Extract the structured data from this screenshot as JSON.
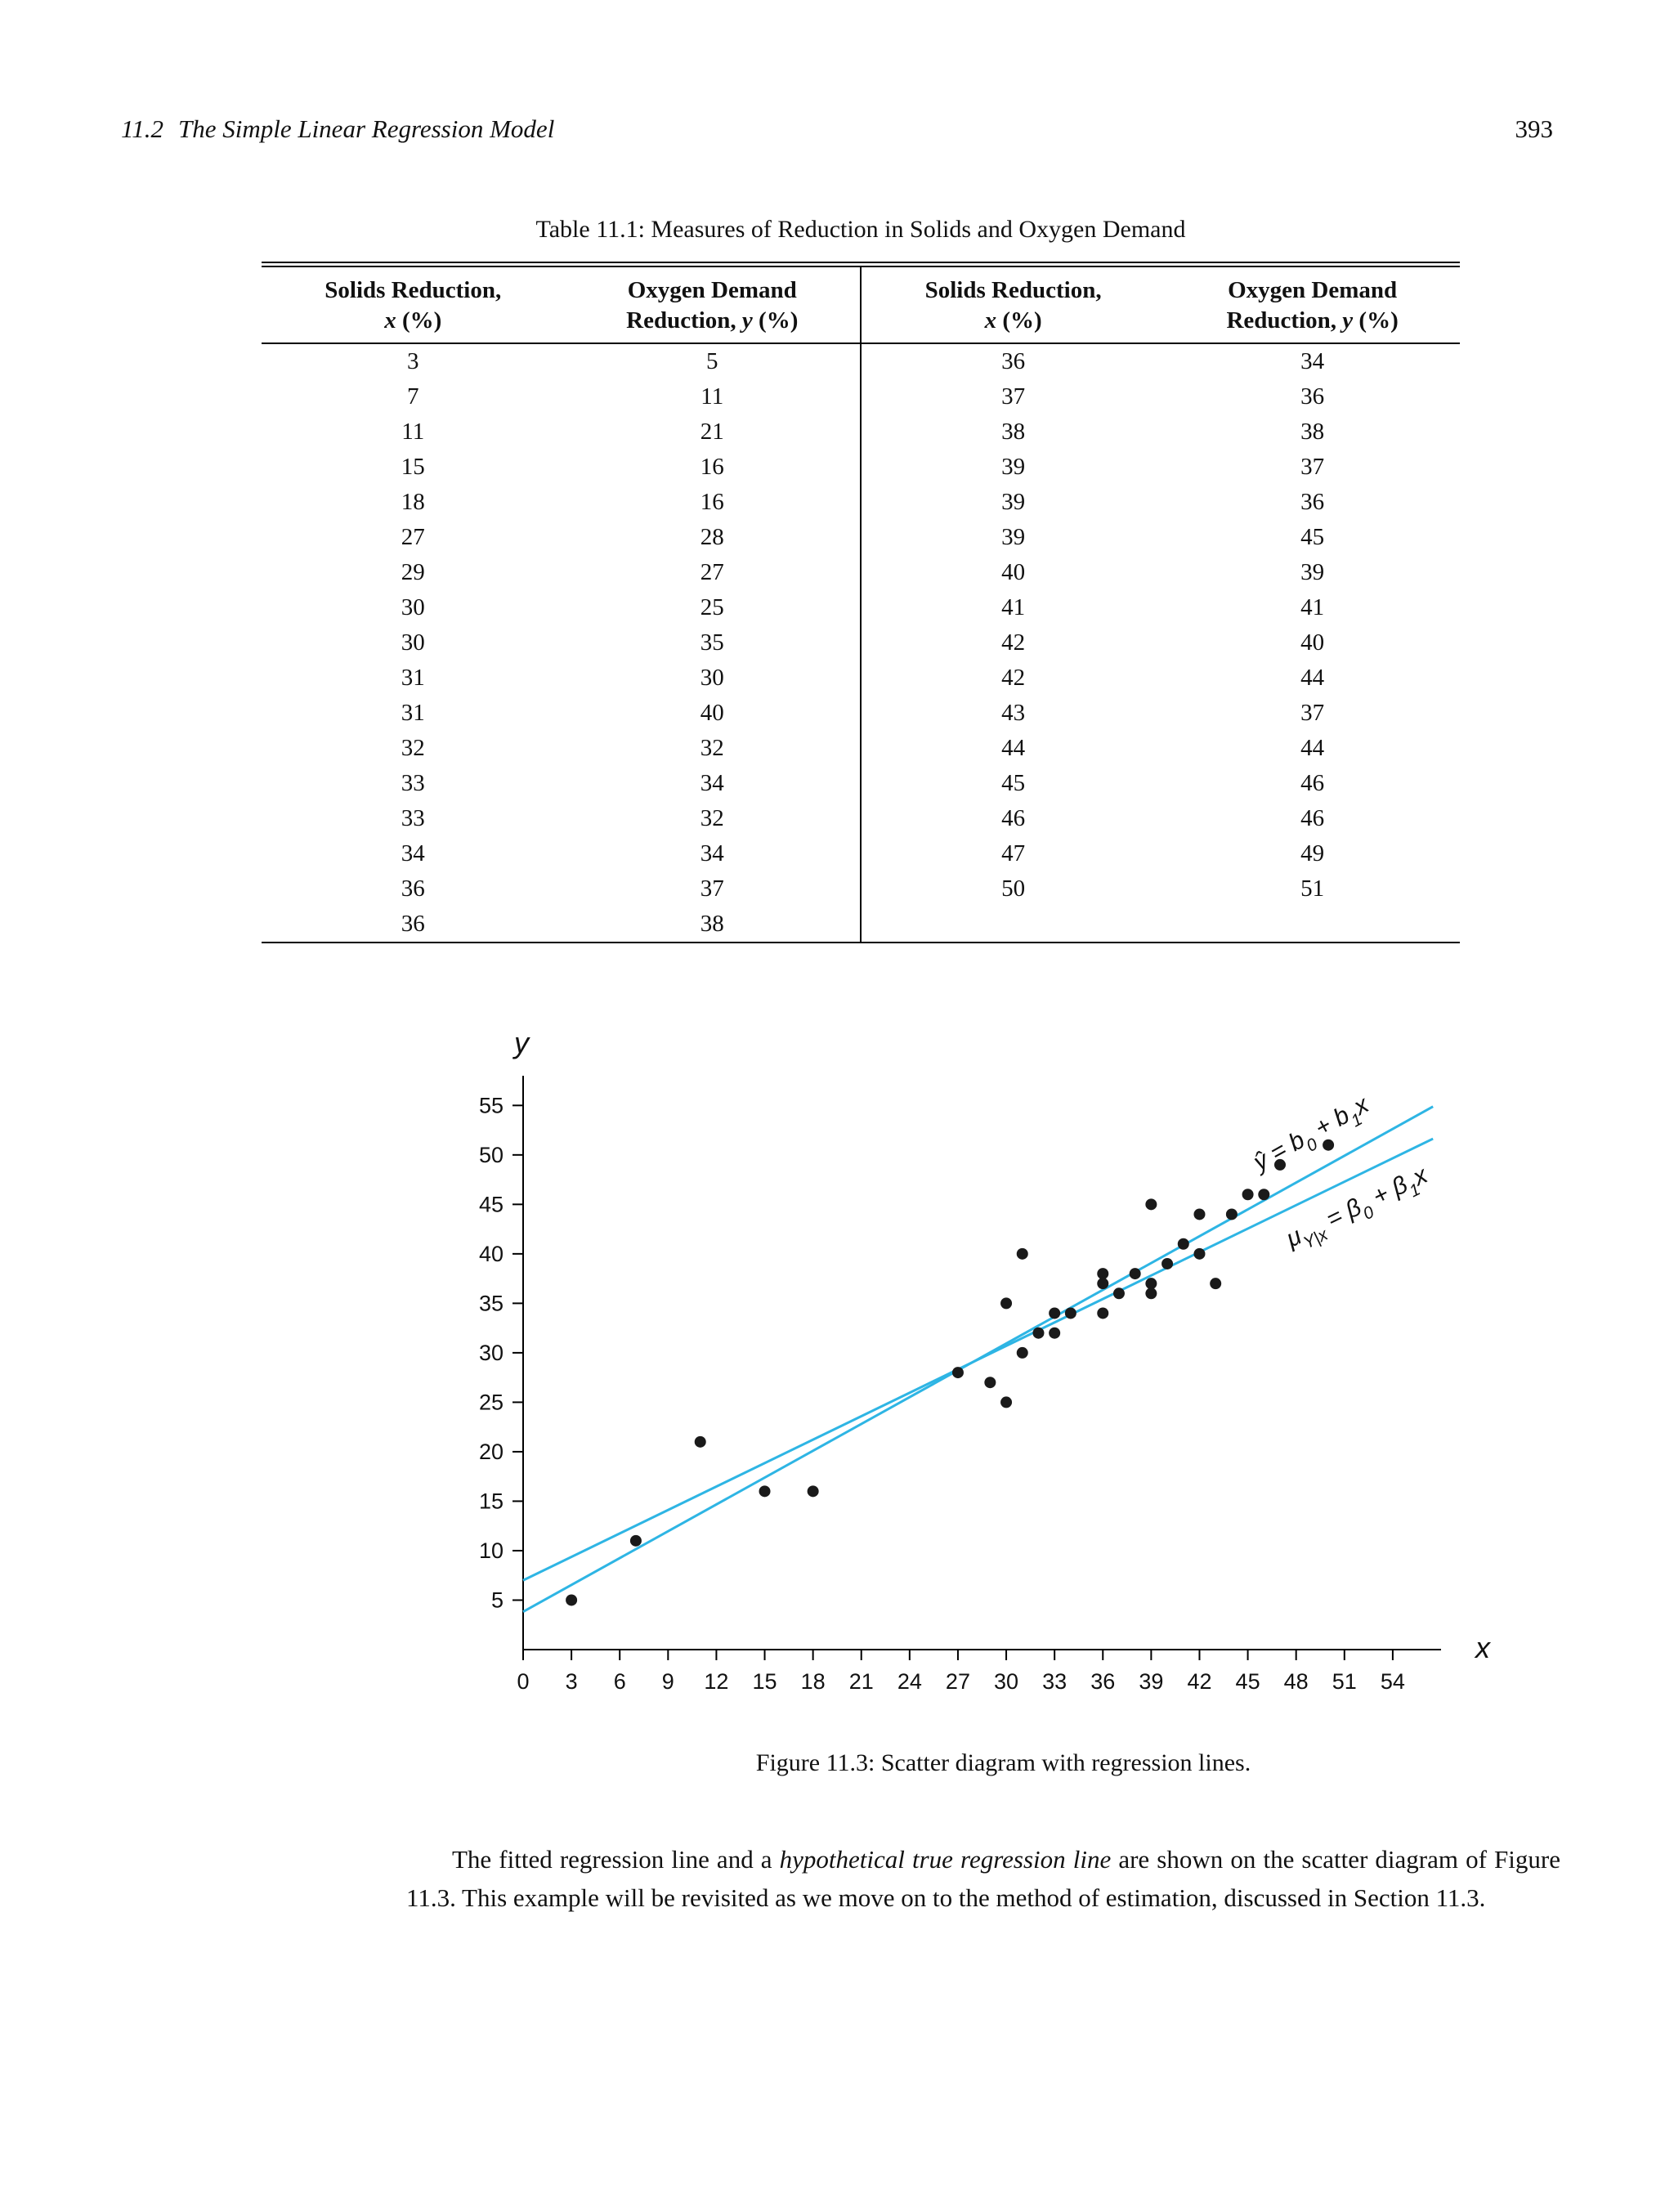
{
  "header": {
    "section_number": "11.2",
    "section_title": "The Simple Linear Regression Model",
    "page_number": "393"
  },
  "table": {
    "title": "Table 11.1: Measures of Reduction in Solids and Oxygen Demand",
    "headers": [
      {
        "line1": "Solids Reduction,",
        "pre": "",
        "var": "x",
        "unit": " (%)"
      },
      {
        "line1": "Oxygen Demand",
        "pre": "Reduction, ",
        "var": "y",
        "unit": " (%)"
      },
      {
        "line1": "Solids Reduction,",
        "pre": "",
        "var": "x",
        "unit": " (%)"
      },
      {
        "line1": "Oxygen Demand",
        "pre": "Reduction, ",
        "var": "y",
        "unit": " (%)"
      }
    ],
    "left_rows": [
      [
        3,
        5
      ],
      [
        7,
        11
      ],
      [
        11,
        21
      ],
      [
        15,
        16
      ],
      [
        18,
        16
      ],
      [
        27,
        28
      ],
      [
        29,
        27
      ],
      [
        30,
        25
      ],
      [
        30,
        35
      ],
      [
        31,
        30
      ],
      [
        31,
        40
      ],
      [
        32,
        32
      ],
      [
        33,
        34
      ],
      [
        33,
        32
      ],
      [
        34,
        34
      ],
      [
        36,
        37
      ],
      [
        36,
        38
      ]
    ],
    "right_rows": [
      [
        36,
        34
      ],
      [
        37,
        36
      ],
      [
        38,
        38
      ],
      [
        39,
        37
      ],
      [
        39,
        36
      ],
      [
        39,
        45
      ],
      [
        40,
        39
      ],
      [
        41,
        41
      ],
      [
        42,
        40
      ],
      [
        42,
        44
      ],
      [
        43,
        37
      ],
      [
        44,
        44
      ],
      [
        45,
        46
      ],
      [
        46,
        46
      ],
      [
        47,
        49
      ],
      [
        50,
        51
      ]
    ]
  },
  "figure": {
    "caption": "Figure 11.3: Scatter diagram with regression lines."
  },
  "paragraph": {
    "segments": [
      {
        "text": "The fitted regression line and a ",
        "italic": false
      },
      {
        "text": "hypothetical true regression line",
        "italic": true
      },
      {
        "text": " are shown on the scatter diagram of Figure 11.3. This example will be revisited as we move on to the method of estimation, discussed in Section 11.3.",
        "italic": false
      }
    ]
  },
  "chart_data": {
    "type": "scatter",
    "title": "",
    "xlabel": "x",
    "ylabel": "y",
    "xlim": [
      0,
      57
    ],
    "ylim": [
      0,
      58
    ],
    "x_ticks": [
      0,
      3,
      6,
      9,
      12,
      15,
      18,
      21,
      24,
      27,
      30,
      33,
      36,
      39,
      42,
      45,
      48,
      51,
      54
    ],
    "y_ticks": [
      5,
      10,
      15,
      20,
      25,
      30,
      35,
      40,
      45,
      50,
      55
    ],
    "points": [
      [
        3,
        5
      ],
      [
        7,
        11
      ],
      [
        11,
        21
      ],
      [
        15,
        16
      ],
      [
        18,
        16
      ],
      [
        27,
        28
      ],
      [
        29,
        27
      ],
      [
        30,
        25
      ],
      [
        30,
        35
      ],
      [
        31,
        30
      ],
      [
        31,
        40
      ],
      [
        32,
        32
      ],
      [
        33,
        34
      ],
      [
        33,
        32
      ],
      [
        34,
        34
      ],
      [
        36,
        37
      ],
      [
        36,
        38
      ],
      [
        36,
        34
      ],
      [
        37,
        36
      ],
      [
        38,
        38
      ],
      [
        39,
        37
      ],
      [
        39,
        36
      ],
      [
        39,
        45
      ],
      [
        40,
        39
      ],
      [
        41,
        41
      ],
      [
        42,
        40
      ],
      [
        42,
        44
      ],
      [
        43,
        37
      ],
      [
        44,
        44
      ],
      [
        45,
        46
      ],
      [
        46,
        46
      ],
      [
        47,
        49
      ],
      [
        50,
        51
      ]
    ],
    "lines": [
      {
        "name": "fitted-regression-line",
        "intercept": 3.83,
        "slope": 0.9036,
        "x_start": 0,
        "x_end": 56.5,
        "label_at_x": 50,
        "label_offset": -34,
        "label_parts": [
          {
            "t": "ŷ = b"
          },
          {
            "t": "0",
            "sub": true
          },
          {
            "t": " + b"
          },
          {
            "t": "1",
            "sub": true
          },
          {
            "t": "x"
          }
        ]
      },
      {
        "name": "true-regression-line",
        "intercept": 7.0,
        "slope": 0.79,
        "x_start": 0,
        "x_end": 56.5,
        "label_at_x": 51,
        "label_offset": 44,
        "label_parts": [
          {
            "t": "μ"
          },
          {
            "t": "Y|x",
            "sub": true
          },
          {
            "t": " = β"
          },
          {
            "t": "0",
            "sub": true
          },
          {
            "t": " + β"
          },
          {
            "t": "1",
            "sub": true
          },
          {
            "t": "x"
          }
        ]
      }
    ],
    "line_color": "#2eb5e4",
    "point_color": "#1a1a1a",
    "axis_color": "#000000"
  }
}
